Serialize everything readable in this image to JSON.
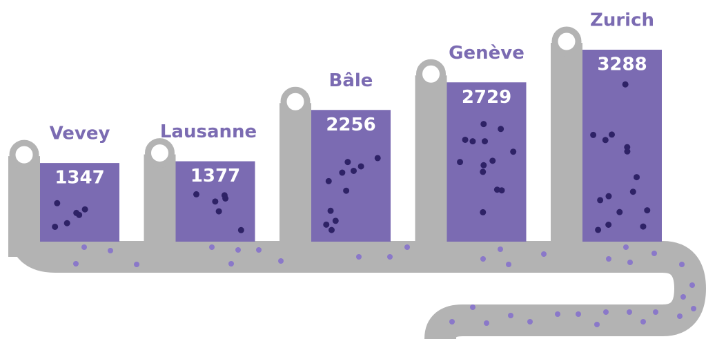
{
  "chart_data": {
    "type": "bar",
    "categories": [
      "Vevey",
      "Lausanne",
      "Bâle",
      "Genève",
      "Zurich"
    ],
    "values": [
      1347,
      1377,
      2256,
      2729,
      3288
    ],
    "color": "#7b6bb2"
  }
}
